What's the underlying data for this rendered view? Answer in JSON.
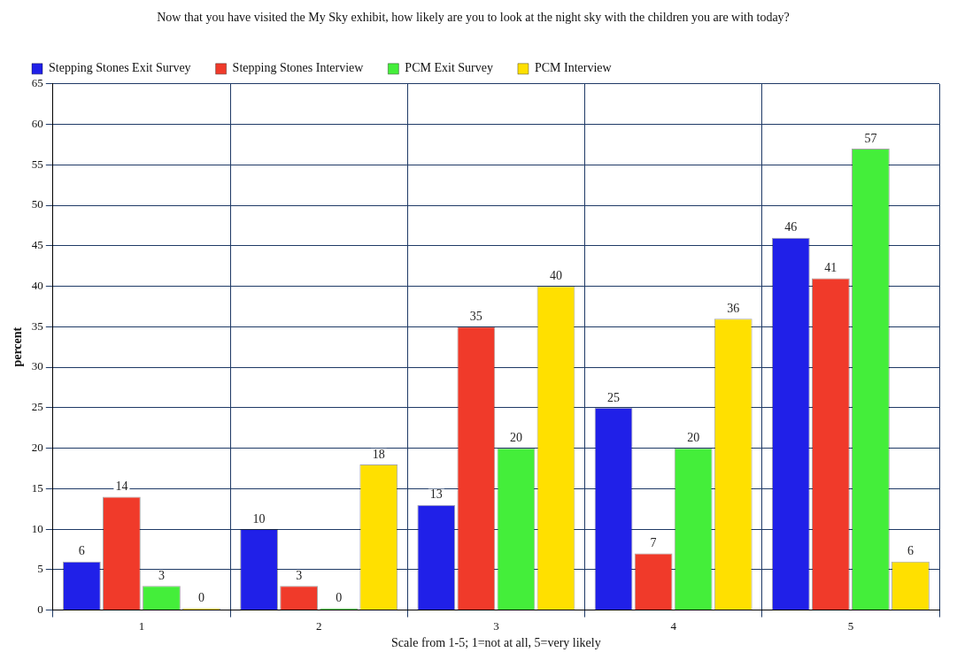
{
  "chart_data": {
    "type": "bar",
    "title": "Now that you have visited the My Sky exhibit, how likely are you to look at the night sky with the children you are with today?",
    "xlabel": "Scale from 1-5; 1=not at all, 5=very likely",
    "ylabel": "percent",
    "categories": [
      "1",
      "2",
      "3",
      "4",
      "5"
    ],
    "series": [
      {
        "name": "Stepping Stones Exit Survey",
        "color": "#2020e8",
        "values": [
          6,
          10,
          13,
          25,
          46
        ]
      },
      {
        "name": "Stepping Stones Interview",
        "color": "#f03a2a",
        "values": [
          14,
          3,
          35,
          7,
          41
        ]
      },
      {
        "name": "PCM Exit Survey",
        "color": "#44ee3a",
        "values": [
          3,
          0,
          20,
          20,
          57
        ]
      },
      {
        "name": "PCM Interview",
        "color": "#ffe000",
        "values": [
          0,
          18,
          40,
          36,
          6
        ]
      }
    ],
    "ylim": [
      0,
      65
    ],
    "yticks": [
      0,
      5,
      10,
      15,
      20,
      25,
      30,
      35,
      40,
      45,
      50,
      55,
      60,
      65
    ],
    "grid": true,
    "legend": "top left",
    "data_labels": true
  }
}
